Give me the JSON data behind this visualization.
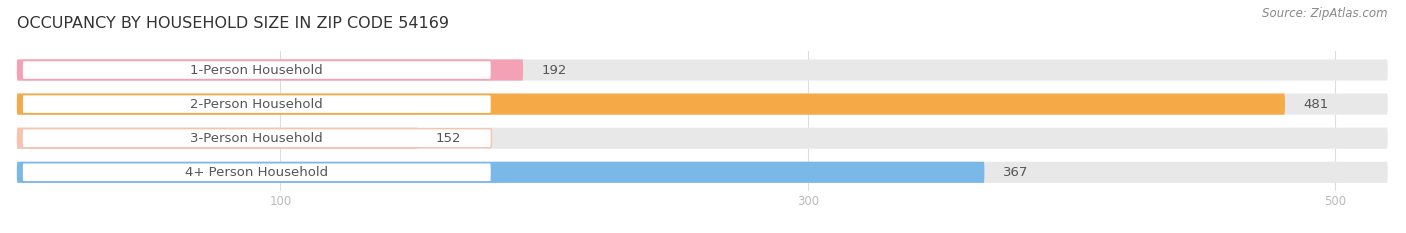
{
  "title": "OCCUPANCY BY HOUSEHOLD SIZE IN ZIP CODE 54169",
  "source": "Source: ZipAtlas.com",
  "categories": [
    "1-Person Household",
    "2-Person Household",
    "3-Person Household",
    "4+ Person Household"
  ],
  "values": [
    192,
    481,
    152,
    367
  ],
  "bar_colors": [
    "#f4a0b5",
    "#f5a947",
    "#f4c4b0",
    "#7ab8e8"
  ],
  "xlim_min": 0,
  "xlim_max": 520,
  "xticks": [
    100,
    300,
    500
  ],
  "background_color": "#ffffff",
  "bar_bg_color": "#e8e8e8",
  "title_fontsize": 11.5,
  "label_fontsize": 9.5,
  "value_fontsize": 9.5,
  "source_fontsize": 8.5,
  "title_color": "#333333",
  "label_color": "#555555",
  "value_color": "#555555",
  "source_color": "#888888",
  "tick_color": "#bbbbbb",
  "grid_color": "#dddddd"
}
